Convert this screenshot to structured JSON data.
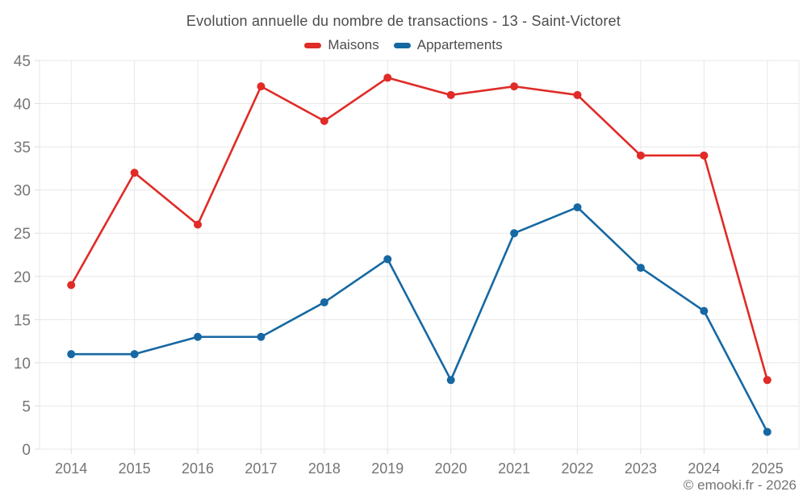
{
  "title": "Evolution annuelle du nombre de transactions - 13 - Saint-Victoret",
  "watermark": "© emooki.fr - 2026",
  "colors": {
    "maisons": "#e02b27",
    "appartements": "#1668a3",
    "gridline": "#e7e7e7",
    "tick": "#dddddd",
    "axis_text": "#757575",
    "title_text": "#4c4c4c"
  },
  "chart_data": {
    "type": "line",
    "title": "Evolution annuelle du nombre de transactions - 13 - Saint-Victoret",
    "categories": [
      "2014",
      "2015",
      "2016",
      "2017",
      "2018",
      "2019",
      "2020",
      "2021",
      "2022",
      "2023",
      "2024",
      "2025"
    ],
    "series": [
      {
        "name": "Maisons",
        "color": "#e02b27",
        "values": [
          19,
          32,
          26,
          42,
          38,
          43,
          41,
          42,
          41,
          34,
          34,
          8
        ]
      },
      {
        "name": "Appartements",
        "color": "#1668a3",
        "values": [
          11,
          11,
          13,
          13,
          17,
          22,
          8,
          25,
          28,
          21,
          16,
          2
        ]
      }
    ],
    "xlabel": "",
    "ylabel": "",
    "ylim": [
      0,
      45
    ],
    "ytick_step": 5,
    "grid": true,
    "legend_position": "top"
  }
}
